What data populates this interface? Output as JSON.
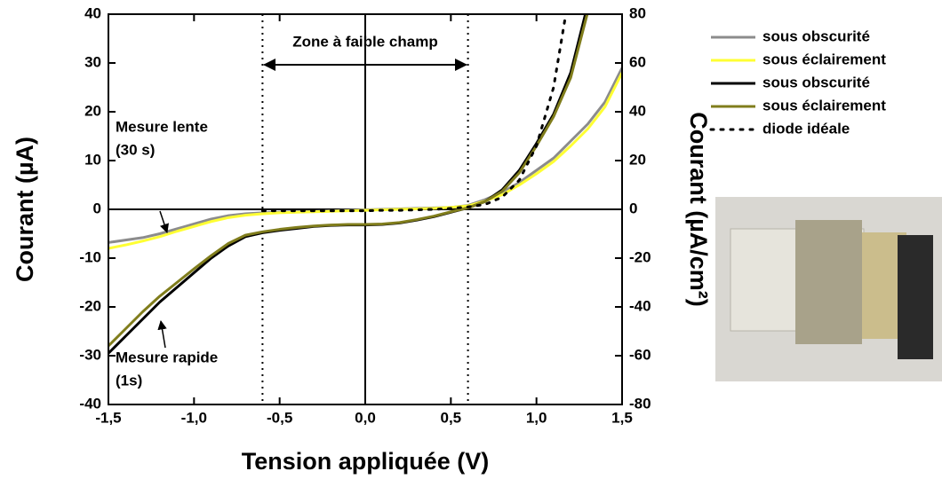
{
  "chart_data": {
    "type": "line",
    "x_label": "Tension appliquée (V)",
    "y_label": "Courant (µA)",
    "y2_label": "Courant (µA/cm²)",
    "x": [
      -1.5,
      -1.4,
      -1.3,
      -1.2,
      -1.1,
      -1.0,
      -0.9,
      -0.8,
      -0.7,
      -0.6,
      -0.5,
      -0.4,
      -0.3,
      -0.2,
      -0.1,
      0,
      0.1,
      0.2,
      0.3,
      0.4,
      0.5,
      0.6,
      0.7,
      0.8,
      0.9,
      1.0,
      1.1,
      1.2,
      1.3,
      1.4,
      1.5
    ],
    "xlim": [
      -1.5,
      1.5
    ],
    "xticks": [
      {
        "value": -1.5,
        "label": "-1,5"
      },
      {
        "value": -1.0,
        "label": "-1,0"
      },
      {
        "value": -0.5,
        "label": "-0,5"
      },
      {
        "value": 0,
        "label": "0,0"
      },
      {
        "value": 0.5,
        "label": "0,5"
      },
      {
        "value": 1.0,
        "label": "1,0"
      },
      {
        "value": 1.5,
        "label": "1,5"
      }
    ],
    "ylim": [
      -40,
      40
    ],
    "yticks": [
      -40,
      -30,
      -20,
      -10,
      0,
      10,
      20,
      30,
      40
    ],
    "y2lim": [
      -80,
      80
    ],
    "y2ticks": [
      -80,
      -60,
      -40,
      -20,
      0,
      20,
      40,
      60,
      80
    ],
    "legend": "right",
    "series": [
      {
        "name": "sous obscurité",
        "color": "#8c8c8c",
        "style": "solid",
        "values": [
          -6.8,
          -6.3,
          -5.8,
          -5,
          -4,
          -3,
          -2,
          -1.3,
          -0.9,
          -0.7,
          -0.6,
          -0.5,
          -0.4,
          -0.3,
          -0.2,
          -0.1,
          0,
          0.1,
          0.2,
          0.3,
          0.4,
          0.8,
          2,
          3.5,
          5.5,
          8,
          10.5,
          14,
          17.5,
          22,
          29
        ]
      },
      {
        "name": "sous éclairement",
        "color": "#ffff33",
        "style": "solid",
        "values": [
          -8,
          -7.3,
          -6.5,
          -5.6,
          -4.5,
          -3.5,
          -2.5,
          -1.7,
          -1.2,
          -0.9,
          -0.7,
          -0.6,
          -0.5,
          -0.4,
          -0.3,
          -0.2,
          -0.1,
          0,
          0.1,
          0.2,
          0.4,
          0.7,
          1.7,
          3,
          5,
          7.3,
          9.8,
          13,
          16.5,
          21,
          28
        ]
      },
      {
        "name": "sous obscurité",
        "color": "#000000",
        "style": "solid",
        "values": [
          -29.5,
          -26,
          -22.5,
          -19,
          -16,
          -13,
          -10,
          -7.5,
          -5.6,
          -4.8,
          -4.3,
          -3.9,
          -3.5,
          -3.3,
          -3.2,
          -3.2,
          -3.1,
          -2.8,
          -2.2,
          -1.5,
          -0.6,
          0.3,
          1.6,
          4,
          8,
          13.5,
          19.5,
          28,
          42,
          null,
          null
        ]
      },
      {
        "name": "sous éclairement",
        "color": "#807d1c",
        "style": "solid",
        "values": [
          -28,
          -24.5,
          -21,
          -17.8,
          -15,
          -12.2,
          -9.5,
          -7,
          -5.3,
          -4.6,
          -4.1,
          -3.7,
          -3.4,
          -3.2,
          -3.1,
          -3.1,
          -3.0,
          -2.7,
          -2.1,
          -1.4,
          -0.5,
          0.3,
          1.6,
          3.7,
          7.5,
          13,
          19,
          27,
          40.5,
          null,
          null
        ]
      },
      {
        "name": "diode idéale",
        "color": "#000000",
        "style": "dotted",
        "values": [
          null,
          null,
          null,
          null,
          null,
          null,
          null,
          null,
          null,
          -0.3,
          -0.3,
          -0.3,
          -0.3,
          -0.3,
          -0.3,
          -0.3,
          -0.2,
          -0.2,
          -0.1,
          0,
          0.2,
          0.5,
          1,
          2.5,
          6,
          13,
          25,
          46,
          null,
          null,
          null
        ]
      }
    ],
    "zone": {
      "label": "Zone à faible champ",
      "x": [
        -0.6,
        0.6
      ]
    },
    "annotations": [
      "Mesure lente",
      "(30 s)",
      "Mesure rapide",
      "(1s)"
    ]
  }
}
